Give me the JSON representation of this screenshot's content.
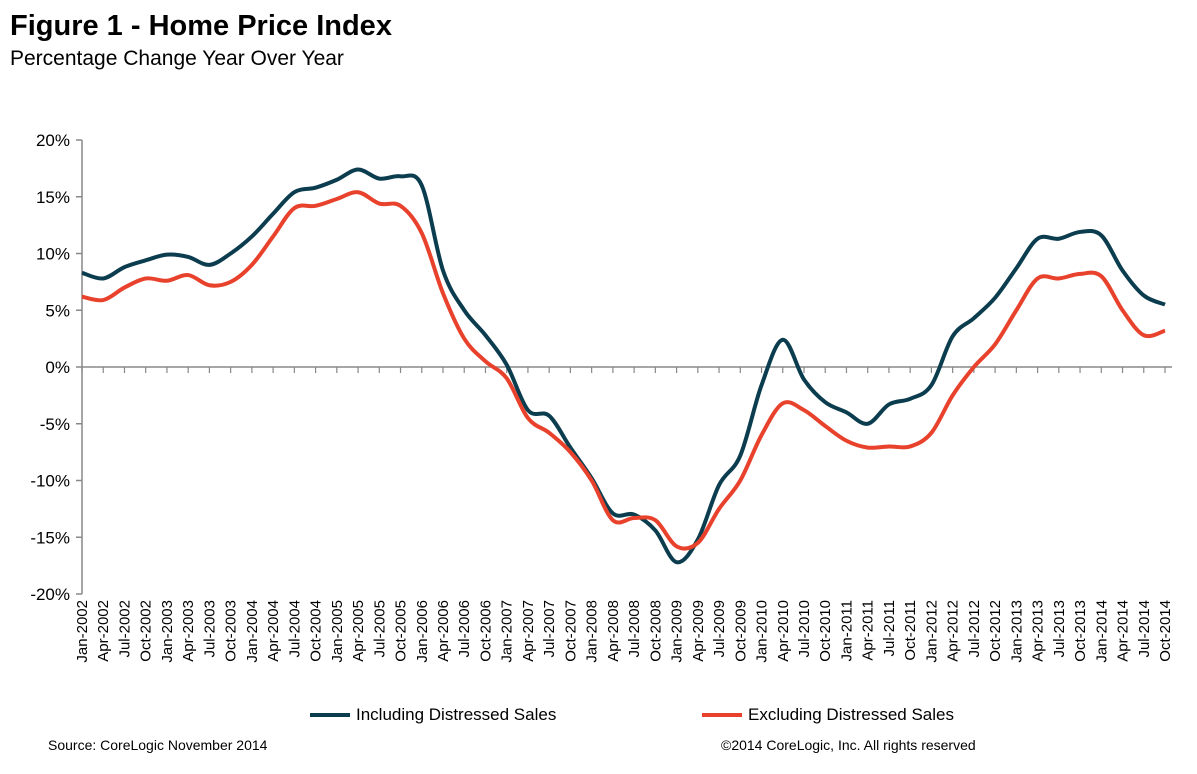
{
  "title": "Figure 1 - Home Price Index",
  "subtitle": "Percentage Change Year Over Year",
  "source": "Source: CoreLogic  November 2014",
  "copyright": "©2014 CoreLogic, Inc. All rights reserved",
  "chart_data": {
    "type": "line",
    "title": "Figure 1 - Home Price Index",
    "subtitle": "Percentage Change Year Over Year",
    "xlabel": "",
    "ylabel": "",
    "ylim": [
      -20,
      20
    ],
    "yticks": [
      "20%",
      "15%",
      "10%",
      "5%",
      "0%",
      "-5%",
      "-10%",
      "-15%",
      "-20%"
    ],
    "ytick_values": [
      20,
      15,
      10,
      5,
      0,
      -5,
      -10,
      -15,
      -20
    ],
    "grid": false,
    "legend_position": "bottom",
    "x": [
      "Jan-2002",
      "Apr-2002",
      "Jul-2002",
      "Oct-2002",
      "Jan-2003",
      "Apr-2003",
      "Jul-2003",
      "Oct-2003",
      "Jan-2004",
      "Apr-2004",
      "Jul-2004",
      "Oct-2004",
      "Jan-2005",
      "Apr-2005",
      "Jul-2005",
      "Oct-2005",
      "Jan-2006",
      "Apr-2006",
      "Jul-2006",
      "Oct-2006",
      "Jan-2007",
      "Apr-2007",
      "Jul-2007",
      "Oct-2007",
      "Jan-2008",
      "Apr-2008",
      "Jul-2008",
      "Oct-2008",
      "Jan-2009",
      "Apr-2009",
      "Jul-2009",
      "Oct-2009",
      "Jan-2010",
      "Apr-2010",
      "Jul-2010",
      "Oct-2010",
      "Jan-2011",
      "Apr-2011",
      "Jul-2011",
      "Oct-2011",
      "Jan-2012",
      "Apr-2012",
      "Jul-2012",
      "Oct-2012",
      "Jan-2013",
      "Apr-2013",
      "Jul-2013",
      "Oct-2013",
      "Jan-2014",
      "Apr-2014",
      "Jul-2014",
      "Oct-2014"
    ],
    "series": [
      {
        "name": "Including Distressed Sales",
        "color": "#0b3d4f",
        "values": [
          8.3,
          7.8,
          8.8,
          9.4,
          9.9,
          9.7,
          9.0,
          10.0,
          11.5,
          13.5,
          15.4,
          15.8,
          16.5,
          17.4,
          16.6,
          16.8,
          16.0,
          8.5,
          5.0,
          2.8,
          0.2,
          -3.8,
          -4.3,
          -7.1,
          -9.8,
          -12.9,
          -13.0,
          -14.4,
          -17.2,
          -15.2,
          -10.4,
          -7.8,
          -1.6,
          2.4,
          -1.1,
          -3.1,
          -4.0,
          -5.0,
          -3.3,
          -2.8,
          -1.6,
          2.7,
          4.3,
          6.1,
          8.7,
          11.3,
          11.3,
          11.9,
          11.6,
          8.5,
          6.3,
          5.5
        ]
      },
      {
        "name": "Excluding Distressed Sales",
        "color": "#e8412c",
        "values": [
          6.2,
          5.9,
          7.0,
          7.8,
          7.6,
          8.1,
          7.2,
          7.5,
          9.0,
          11.5,
          14.0,
          14.2,
          14.8,
          15.4,
          14.4,
          14.2,
          11.8,
          6.5,
          2.5,
          0.5,
          -1.0,
          -4.5,
          -5.8,
          -7.5,
          -10.0,
          -13.5,
          -13.3,
          -13.5,
          -15.8,
          -15.5,
          -12.5,
          -10.0,
          -6.0,
          -3.2,
          -3.8,
          -5.2,
          -6.5,
          -7.1,
          -7.0,
          -7.0,
          -5.8,
          -2.5,
          0.0,
          2.0,
          5.0,
          7.8,
          7.8,
          8.2,
          8.0,
          5.0,
          2.8,
          3.2
        ]
      }
    ]
  }
}
